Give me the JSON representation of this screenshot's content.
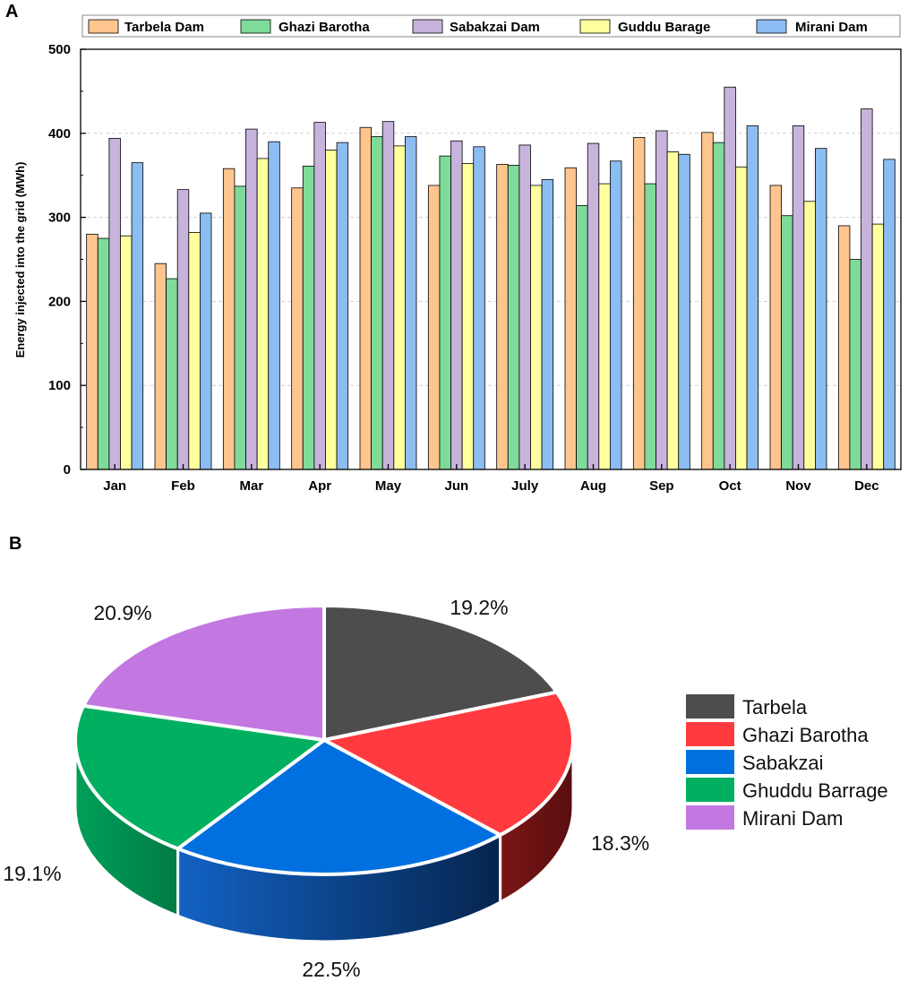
{
  "figure": {
    "panel_a_label": "A",
    "panel_b_label": "B"
  },
  "chart_data": [
    {
      "type": "bar",
      "title": "",
      "xlabel": "",
      "ylabel": "Energy injected into the grid (MWh)",
      "ylim": [
        0,
        500
      ],
      "yticks": [
        0,
        100,
        200,
        300,
        400,
        500
      ],
      "grid": true,
      "legend_position": "top",
      "categories": [
        "Jan",
        "Feb",
        "Mar",
        "Apr",
        "May",
        "Jun",
        "July",
        "Aug",
        "Sep",
        "Oct",
        "Nov",
        "Dec"
      ],
      "series": [
        {
          "name": "Tarbela Dam",
          "color": "#FFC58E",
          "values": [
            280,
            245,
            358,
            335,
            407,
            338,
            363,
            359,
            395,
            401,
            338,
            290
          ]
        },
        {
          "name": "Ghazi Barotha",
          "color": "#7FDB99",
          "values": [
            275,
            227,
            337,
            361,
            396,
            373,
            362,
            314,
            340,
            389,
            302,
            250
          ]
        },
        {
          "name": "Sabakzai Dam",
          "color": "#C7B3DB",
          "values": [
            394,
            333,
            405,
            413,
            414,
            391,
            386,
            388,
            403,
            455,
            409,
            429
          ]
        },
        {
          "name": "Guddu Barage",
          "color": "#FFFF9E",
          "values": [
            278,
            282,
            370,
            380,
            385,
            364,
            338,
            340,
            378,
            360,
            319,
            292
          ]
        },
        {
          "name": "Mirani Dam",
          "color": "#8CBDF2",
          "values": [
            365,
            305,
            390,
            389,
            396,
            384,
            345,
            367,
            375,
            409,
            382,
            369
          ]
        }
      ]
    },
    {
      "type": "pie",
      "title": "",
      "legend_position": "right",
      "slices": [
        {
          "label": "Tarbela",
          "value": 19.2,
          "text": "19.2%",
          "color": "#4D4D4D",
          "side_color": "#333333"
        },
        {
          "label": "Ghazi Barotha",
          "value": 18.3,
          "text": "18.3%",
          "color": "#FF3B3F",
          "side_color": "#6E1414"
        },
        {
          "label": "Sabakzai",
          "value": 22.5,
          "text": "22.5%",
          "color": "#0070E0",
          "side_color": "#0A3E8C"
        },
        {
          "label": "Ghuddu Barrage",
          "value": 19.1,
          "text": "19.1%",
          "color": "#00B060",
          "side_color": "#00834A"
        },
        {
          "label": "Mirani Dam",
          "value": 20.9,
          "text": "20.9%",
          "color": "#C278E0",
          "side_color": "#8A50A8"
        }
      ]
    }
  ]
}
